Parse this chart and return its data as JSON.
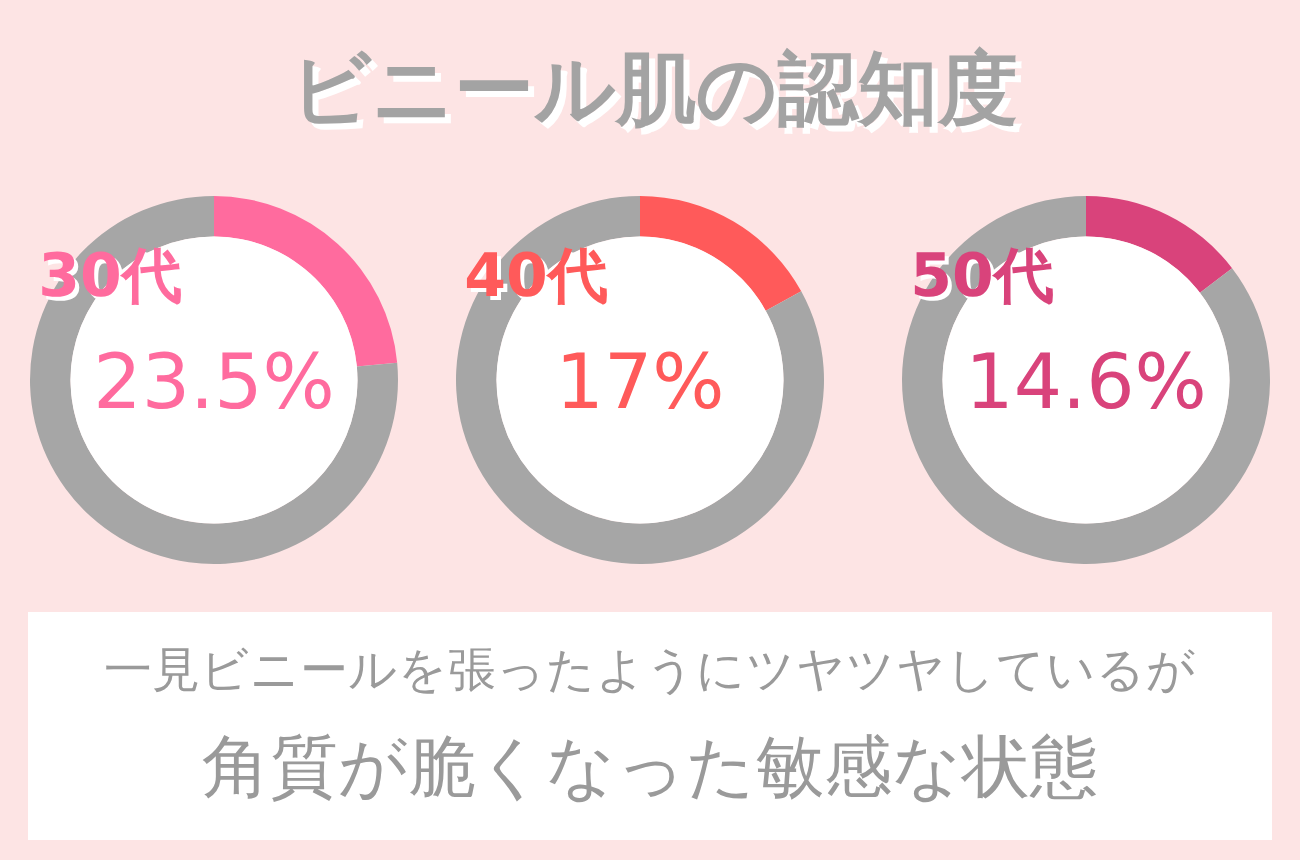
{
  "chart_data": [
    {
      "type": "other",
      "title": "ビニール肌の認知度",
      "annotations": [
        "一見ビニールを張ったようにツヤツヤしているが",
        "角質が脆くなった敏感な状態"
      ]
    },
    {
      "type": "donut",
      "title": "30代",
      "categories": [
        null,
        null
      ],
      "values": [
        23.5,
        76.5
      ],
      "colors": [
        "#ff6b9e",
        "#a6a6a6"
      ],
      "annotations": [
        "23.5%"
      ]
    },
    {
      "type": "donut",
      "title": "40代",
      "categories": [
        null,
        null
      ],
      "values": [
        17,
        83
      ],
      "colors": [
        "#ff5a5a",
        "#a6a6a6"
      ],
      "annotations": [
        "17%"
      ]
    },
    {
      "type": "donut",
      "title": "50代",
      "categories": [
        null,
        null
      ],
      "values": [
        14.6,
        85.4
      ],
      "colors": [
        "#d9437b",
        "#a6a6a6"
      ],
      "annotations": [
        "14.6%"
      ]
    }
  ]
}
